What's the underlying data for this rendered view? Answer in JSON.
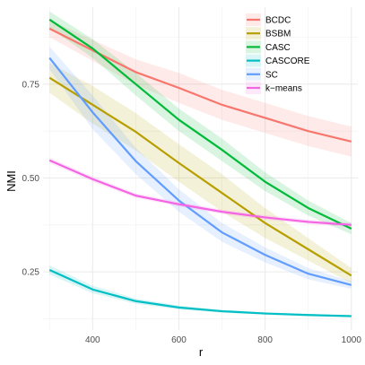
{
  "chart_data": {
    "type": "line",
    "title": "",
    "xlabel": "r",
    "ylabel": "NMI",
    "xlim": [
      285,
      1015
    ],
    "ylim": [
      0.095,
      0.955
    ],
    "x": [
      300,
      400,
      500,
      600,
      700,
      800,
      900,
      1000
    ],
    "x_ticks": [
      400,
      600,
      800,
      1000
    ],
    "x_tick_labels": [
      "400",
      "600",
      "800",
      "1000"
    ],
    "y_ticks": [
      0.25,
      0.5,
      0.75
    ],
    "y_tick_labels": [
      "0.25",
      "0.50",
      "0.75"
    ],
    "grid": true,
    "legend_position": "top-right",
    "series": [
      {
        "name": "BCDC",
        "color": "#F8766D",
        "values": [
          0.898,
          0.84,
          0.782,
          0.74,
          0.695,
          0.66,
          0.625,
          0.597
        ],
        "lower": [
          0.875,
          0.812,
          0.748,
          0.7,
          0.655,
          0.62,
          0.585,
          0.557
        ],
        "upper": [
          0.921,
          0.868,
          0.816,
          0.78,
          0.735,
          0.7,
          0.665,
          0.637
        ]
      },
      {
        "name": "BSBM",
        "color": "#B79F00",
        "values": [
          0.767,
          0.695,
          0.623,
          0.54,
          0.46,
          0.38,
          0.31,
          0.24
        ],
        "lower": [
          0.727,
          0.645,
          0.573,
          0.49,
          0.41,
          0.34,
          0.28,
          0.22
        ],
        "upper": [
          0.807,
          0.745,
          0.673,
          0.59,
          0.51,
          0.42,
          0.34,
          0.26
        ]
      },
      {
        "name": "CASC",
        "color": "#00BA38",
        "values": [
          0.922,
          0.845,
          0.75,
          0.655,
          0.575,
          0.49,
          0.42,
          0.365
        ],
        "lower": [
          0.9,
          0.82,
          0.72,
          0.625,
          0.545,
          0.465,
          0.4,
          0.35
        ],
        "upper": [
          0.944,
          0.87,
          0.78,
          0.685,
          0.605,
          0.515,
          0.44,
          0.38
        ]
      },
      {
        "name": "CASCORE",
        "color": "#00BFC4",
        "values": [
          0.255,
          0.203,
          0.172,
          0.155,
          0.145,
          0.139,
          0.135,
          0.132
        ],
        "lower": [
          0.243,
          0.193,
          0.165,
          0.15,
          0.141,
          0.136,
          0.132,
          0.13
        ],
        "upper": [
          0.267,
          0.213,
          0.179,
          0.16,
          0.149,
          0.142,
          0.138,
          0.134
        ]
      },
      {
        "name": "SC",
        "color": "#619CFF",
        "values": [
          0.82,
          0.675,
          0.545,
          0.44,
          0.355,
          0.295,
          0.245,
          0.215
        ],
        "lower": [
          0.79,
          0.63,
          0.51,
          0.41,
          0.33,
          0.275,
          0.23,
          0.205
        ],
        "upper": [
          0.85,
          0.72,
          0.58,
          0.47,
          0.38,
          0.315,
          0.26,
          0.225
        ]
      },
      {
        "name": "k−means",
        "color": "#F564E3",
        "values": [
          0.547,
          0.497,
          0.453,
          0.43,
          0.41,
          0.395,
          0.383,
          0.375
        ],
        "lower": [
          0.54,
          0.49,
          0.447,
          0.424,
          0.404,
          0.389,
          0.377,
          0.369
        ],
        "upper": [
          0.554,
          0.504,
          0.459,
          0.436,
          0.416,
          0.401,
          0.389,
          0.381
        ]
      }
    ]
  }
}
